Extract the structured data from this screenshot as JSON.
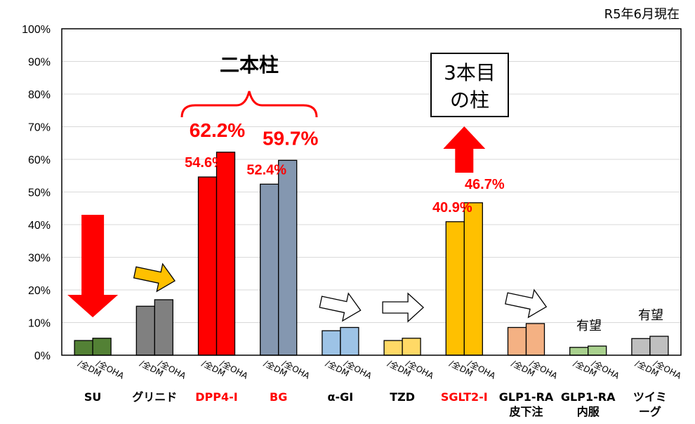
{
  "chart_data": {
    "type": "bar",
    "date_note": "R5年6月現在",
    "ylim": [
      0,
      100
    ],
    "yticks": [
      "0%",
      "10%",
      "20%",
      "30%",
      "40%",
      "50%",
      "60%",
      "70%",
      "80%",
      "90%",
      "100%"
    ],
    "sub_labels": [
      "/全DM",
      "/全OHA"
    ],
    "categories": [
      {
        "label": [
          "SU"
        ],
        "label_color": "#000000",
        "fill": "#538135",
        "values": [
          4.5,
          5.2
        ]
      },
      {
        "label": [
          "グリニド"
        ],
        "label_color": "#000000",
        "fill": "#808080",
        "values": [
          15,
          17
        ]
      },
      {
        "label": [
          "DPP4-I"
        ],
        "label_color": "#ff0000",
        "fill": "#ff0000",
        "values": [
          54.6,
          62.2
        ]
      },
      {
        "label": [
          "BG"
        ],
        "label_color": "#ff0000",
        "fill": "#8497b0",
        "values": [
          52.4,
          59.7
        ]
      },
      {
        "label": [
          "α-GI"
        ],
        "label_color": "#000000",
        "fill": "#9dc3e6",
        "values": [
          7.5,
          8.5
        ]
      },
      {
        "label": [
          "TZD"
        ],
        "label_color": "#000000",
        "fill": "#ffd966",
        "values": [
          4.5,
          5.2
        ]
      },
      {
        "label": [
          "SGLT2-I"
        ],
        "label_color": "#ff0000",
        "fill": "#ffc000",
        "values": [
          40.9,
          46.7
        ]
      },
      {
        "label": [
          "GLP1-RA",
          "皮下注"
        ],
        "label_color": "#000000",
        "fill": "#f4b183",
        "values": [
          8.5,
          9.7
        ]
      },
      {
        "label": [
          "GLP1-RA",
          "内服"
        ],
        "label_color": "#000000",
        "fill": "#a9d18e",
        "values": [
          2.4,
          2.8
        ]
      },
      {
        "label": [
          "ツイミ",
          "ーグ"
        ],
        "label_color": "#000000",
        "fill": "#bfbfbf",
        "values": [
          5.1,
          5.8
        ]
      }
    ],
    "data_labels": [
      {
        "text": "54.6%",
        "cat": 2,
        "bar": 0
      },
      {
        "text": "62.2%",
        "cat": 2,
        "bar": 1
      },
      {
        "text": "52.4%",
        "cat": 3,
        "bar": 0
      },
      {
        "text": "59.7%",
        "cat": 3,
        "bar": 1
      },
      {
        "text": "40.9%",
        "cat": 6,
        "bar": 0
      },
      {
        "text": "46.7%",
        "cat": 6,
        "bar": 1
      }
    ],
    "annotations": {
      "two_pillars": "二本柱",
      "third_pillar_line1": "3本目",
      "third_pillar_line2": "の柱",
      "promising": "有望"
    },
    "arrows": [
      {
        "cat": 0,
        "style": "down",
        "color": "#ff0000"
      },
      {
        "cat": 1,
        "style": "diag",
        "color": "#ffc000"
      },
      {
        "cat": 4,
        "style": "diag",
        "color": "#ffffff"
      },
      {
        "cat": 5,
        "style": "right",
        "color": "#ffffff"
      },
      {
        "cat": 6,
        "style": "up",
        "color": "#ff0000"
      },
      {
        "cat": 7,
        "style": "diag",
        "color": "#ffffff"
      }
    ],
    "colors": {
      "accent": "#ff0000",
      "axis": "#000000",
      "grid": "#d9d9d9"
    }
  }
}
